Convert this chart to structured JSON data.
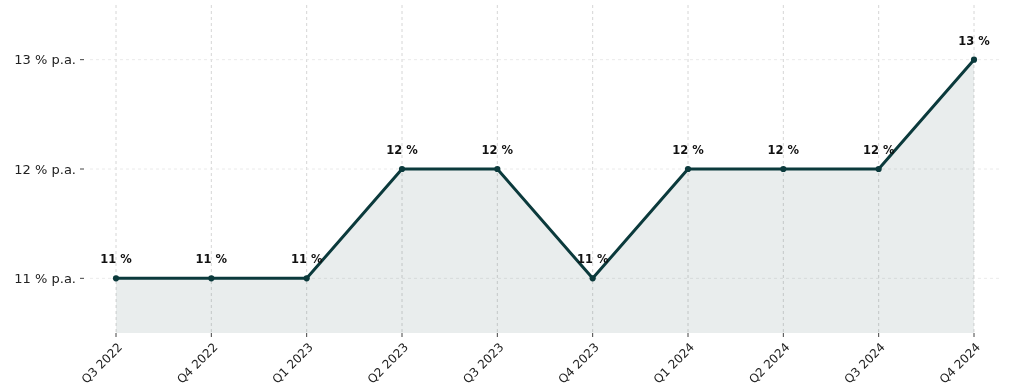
{
  "chart_data": {
    "type": "area",
    "categories": [
      "Q3 2022",
      "Q4 2022",
      "Q1 2023",
      "Q2 2023",
      "Q3 2023",
      "Q4 2023",
      "Q1 2024",
      "Q2 2024",
      "Q3 2024",
      "Q4 2024"
    ],
    "series": [
      {
        "color": "#0b3a3c",
        "values": [
          11,
          11,
          11,
          12,
          12,
          11,
          12,
          12,
          12,
          13
        ],
        "value_labels": [
          "11 %",
          "11 %",
          "11 %",
          "12 %",
          "12 %",
          "11 %",
          "12 %",
          "12 %",
          "12 %",
          "13 %"
        ]
      }
    ],
    "ylim": [
      10.5,
      13.5
    ],
    "yticks": [
      {
        "value": 11,
        "label": "11 % p.a."
      },
      {
        "value": 12,
        "label": "12 % p.a."
      },
      {
        "value": 13,
        "label": "13 % p.a."
      }
    ],
    "grid": true,
    "marker": "circle"
  }
}
